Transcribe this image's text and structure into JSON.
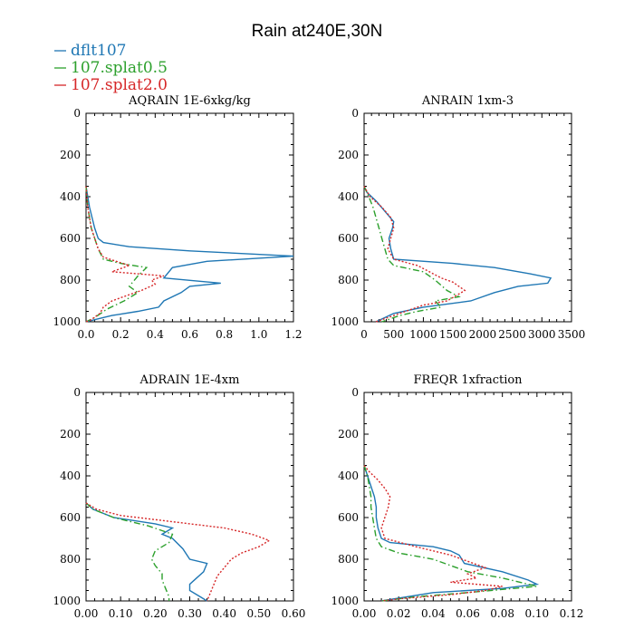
{
  "title": "Rain at240E,30N",
  "legend": [
    {
      "name": "dflt107",
      "color": "#1f77b4",
      "dash": "solid"
    },
    {
      "name": "107.splat0.5",
      "color": "#2ca02c",
      "dash": "dashdot"
    },
    {
      "name": "107.splat2.0",
      "color": "#d62728",
      "dash": "dotted"
    }
  ],
  "chart_data": [
    {
      "type": "line",
      "title": "AQRAIN  1E-6xkg/kg",
      "xlim": [
        0,
        1.2
      ],
      "ylim": [
        0,
        1000
      ],
      "y_inverted": true,
      "xticks": [
        "0.0",
        "0.2",
        "0.4",
        "0.6",
        "0.8",
        "1.0",
        "1.2"
      ],
      "xtick_values": [
        0,
        0.2,
        0.4,
        0.6,
        0.8,
        1.0,
        1.2
      ],
      "yticks": [
        "0",
        "200",
        "400",
        "600",
        "800",
        "1000"
      ],
      "ytick_values": [
        0,
        200,
        400,
        600,
        800,
        1000
      ],
      "series": [
        {
          "name": "dflt107",
          "points": [
            [
              0,
              350
            ],
            [
              0.02,
              450
            ],
            [
              0.05,
              550
            ],
            [
              0.07,
              600
            ],
            [
              0.1,
              620
            ],
            [
              0.25,
              640
            ],
            [
              0.6,
              660
            ],
            [
              1.2,
              685
            ],
            [
              0.7,
              710
            ],
            [
              0.5,
              740
            ],
            [
              0.45,
              790
            ],
            [
              0.78,
              815
            ],
            [
              0.6,
              830
            ],
            [
              0.55,
              860
            ],
            [
              0.45,
              900
            ],
            [
              0.42,
              930
            ],
            [
              0.3,
              950
            ],
            [
              0.15,
              970
            ],
            [
              0.05,
              990
            ],
            [
              0,
              1000
            ]
          ]
        },
        {
          "name": "107.splat0.5",
          "points": [
            [
              0,
              350
            ],
            [
              0.01,
              450
            ],
            [
              0.03,
              550
            ],
            [
              0.07,
              650
            ],
            [
              0.1,
              700
            ],
            [
              0.2,
              720
            ],
            [
              0.35,
              740
            ],
            [
              0.3,
              780
            ],
            [
              0.25,
              830
            ],
            [
              0.3,
              860
            ],
            [
              0.22,
              900
            ],
            [
              0.12,
              940
            ],
            [
              0.05,
              980
            ],
            [
              0,
              1000
            ]
          ]
        },
        {
          "name": "107.splat2.0",
          "points": [
            [
              0,
              350
            ],
            [
              0.01,
              450
            ],
            [
              0.03,
              550
            ],
            [
              0.07,
              650
            ],
            [
              0.1,
              690
            ],
            [
              0.25,
              730
            ],
            [
              0.15,
              760
            ],
            [
              0.45,
              780
            ],
            [
              0.38,
              800
            ],
            [
              0.4,
              820
            ],
            [
              0.32,
              850
            ],
            [
              0.25,
              870
            ],
            [
              0.15,
              900
            ],
            [
              0.1,
              930
            ],
            [
              0.08,
              960
            ],
            [
              0.03,
              990
            ],
            [
              0,
              1000
            ]
          ]
        }
      ]
    },
    {
      "type": "line",
      "title": "ANRAIN  1xm-3",
      "xlim": [
        0,
        3500
      ],
      "ylim": [
        0,
        1000
      ],
      "y_inverted": true,
      "xticks": [
        "0",
        "500",
        "1000",
        "1500",
        "2000",
        "2500",
        "3000",
        "3500"
      ],
      "xtick_values": [
        0,
        500,
        1000,
        1500,
        2000,
        2500,
        3000,
        3500
      ],
      "yticks": [
        "0",
        "200",
        "400",
        "600",
        "800",
        "1000"
      ],
      "ytick_values": [
        0,
        200,
        400,
        600,
        800,
        1000
      ],
      "series": [
        {
          "name": "dflt107",
          "points": [
            [
              0,
              350
            ],
            [
              50,
              380
            ],
            [
              200,
              420
            ],
            [
              350,
              470
            ],
            [
              500,
              520
            ],
            [
              480,
              550
            ],
            [
              420,
              600
            ],
            [
              450,
              650
            ],
            [
              500,
              700
            ],
            [
              1500,
              720
            ],
            [
              2200,
              740
            ],
            [
              2800,
              770
            ],
            [
              3150,
              790
            ],
            [
              3100,
              815
            ],
            [
              2600,
              830
            ],
            [
              2200,
              860
            ],
            [
              1800,
              900
            ],
            [
              1000,
              930
            ],
            [
              500,
              960
            ],
            [
              200,
              1000
            ]
          ]
        },
        {
          "name": "107.splat0.5",
          "points": [
            [
              0,
              350
            ],
            [
              80,
              400
            ],
            [
              150,
              450
            ],
            [
              200,
              500
            ],
            [
              250,
              550
            ],
            [
              300,
              600
            ],
            [
              350,
              650
            ],
            [
              400,
              700
            ],
            [
              500,
              730
            ],
            [
              1000,
              760
            ],
            [
              1200,
              800
            ],
            [
              1400,
              850
            ],
            [
              1600,
              880
            ],
            [
              1200,
              900
            ],
            [
              1300,
              930
            ],
            [
              900,
              950
            ],
            [
              600,
              970
            ],
            [
              300,
              1000
            ]
          ]
        },
        {
          "name": "107.splat2.0",
          "points": [
            [
              0,
              350
            ],
            [
              100,
              400
            ],
            [
              300,
              450
            ],
            [
              450,
              500
            ],
            [
              500,
              550
            ],
            [
              450,
              600
            ],
            [
              400,
              650
            ],
            [
              500,
              700
            ],
            [
              900,
              730
            ],
            [
              1100,
              760
            ],
            [
              1300,
              790
            ],
            [
              1500,
              810
            ],
            [
              1700,
              850
            ],
            [
              1400,
              900
            ],
            [
              1000,
              920
            ],
            [
              700,
              950
            ],
            [
              400,
              980
            ],
            [
              200,
              1000
            ]
          ]
        }
      ]
    },
    {
      "type": "line",
      "title": "ADRAIN  1E-4xm",
      "xlim": [
        0,
        0.6
      ],
      "ylim": [
        0,
        1000
      ],
      "y_inverted": true,
      "xticks": [
        "0.00",
        "0.10",
        "0.20",
        "0.30",
        "0.40",
        "0.50",
        "0.60"
      ],
      "xtick_values": [
        0,
        0.1,
        0.2,
        0.3,
        0.4,
        0.5,
        0.6
      ],
      "yticks": [
        "0",
        "200",
        "400",
        "600",
        "800",
        "1000"
      ],
      "ytick_values": [
        0,
        200,
        400,
        600,
        800,
        1000
      ],
      "series": [
        {
          "name": "dflt107",
          "points": [
            [
              0,
              530
            ],
            [
              0.02,
              560
            ],
            [
              0.08,
              600
            ],
            [
              0.2,
              630
            ],
            [
              0.25,
              650
            ],
            [
              0.22,
              680
            ],
            [
              0.25,
              700
            ],
            [
              0.28,
              750
            ],
            [
              0.3,
              800
            ],
            [
              0.35,
              820
            ],
            [
              0.34,
              860
            ],
            [
              0.32,
              890
            ],
            [
              0.3,
              920
            ],
            [
              0.3,
              950
            ],
            [
              0.33,
              980
            ],
            [
              0.35,
              1000
            ]
          ]
        },
        {
          "name": "107.splat0.5",
          "points": [
            [
              0,
              530
            ],
            [
              0.02,
              560
            ],
            [
              0.08,
              600
            ],
            [
              0.18,
              640
            ],
            [
              0.25,
              680
            ],
            [
              0.24,
              720
            ],
            [
              0.2,
              760
            ],
            [
              0.19,
              800
            ],
            [
              0.2,
              830
            ],
            [
              0.22,
              870
            ],
            [
              0.22,
              900
            ],
            [
              0.23,
              940
            ],
            [
              0.24,
              980
            ],
            [
              0.24,
              1000
            ]
          ]
        },
        {
          "name": "107.splat2.0",
          "points": [
            [
              0,
              530
            ],
            [
              0.03,
              560
            ],
            [
              0.1,
              590
            ],
            [
              0.25,
              620
            ],
            [
              0.4,
              650
            ],
            [
              0.48,
              680
            ],
            [
              0.53,
              710
            ],
            [
              0.5,
              740
            ],
            [
              0.45,
              770
            ],
            [
              0.42,
              800
            ],
            [
              0.4,
              840
            ],
            [
              0.38,
              880
            ],
            [
              0.37,
              920
            ],
            [
              0.36,
              960
            ],
            [
              0.35,
              1000
            ]
          ]
        }
      ]
    },
    {
      "type": "line",
      "title": "FREQR  1xfraction",
      "xlim": [
        0,
        0.12
      ],
      "ylim": [
        0,
        1000
      ],
      "y_inverted": true,
      "xticks": [
        "0.00",
        "0.02",
        "0.04",
        "0.06",
        "0.08",
        "0.10",
        "0.12"
      ],
      "xtick_values": [
        0,
        0.02,
        0.04,
        0.06,
        0.08,
        0.1,
        0.12
      ],
      "yticks": [
        "0",
        "200",
        "400",
        "600",
        "800",
        "1000"
      ],
      "ytick_values": [
        0,
        200,
        400,
        600,
        800,
        1000
      ],
      "series": [
        {
          "name": "dflt107",
          "points": [
            [
              0,
              350
            ],
            [
              0.002,
              400
            ],
            [
              0.004,
              450
            ],
            [
              0.006,
              500
            ],
            [
              0.007,
              550
            ],
            [
              0.007,
              600
            ],
            [
              0.008,
              650
            ],
            [
              0.01,
              700
            ],
            [
              0.015,
              720
            ],
            [
              0.04,
              740
            ],
            [
              0.05,
              760
            ],
            [
              0.055,
              780
            ],
            [
              0.058,
              820
            ],
            [
              0.08,
              860
            ],
            [
              0.095,
              900
            ],
            [
              0.1,
              920
            ],
            [
              0.08,
              940
            ],
            [
              0.04,
              960
            ],
            [
              0.01,
              1000
            ]
          ]
        },
        {
          "name": "107.splat0.5",
          "points": [
            [
              0,
              350
            ],
            [
              0.002,
              400
            ],
            [
              0.003,
              450
            ],
            [
              0.004,
              500
            ],
            [
              0.004,
              550
            ],
            [
              0.005,
              600
            ],
            [
              0.006,
              650
            ],
            [
              0.007,
              700
            ],
            [
              0.01,
              740
            ],
            [
              0.02,
              770
            ],
            [
              0.04,
              800
            ],
            [
              0.05,
              830
            ],
            [
              0.06,
              860
            ],
            [
              0.08,
              890
            ],
            [
              0.09,
              910
            ],
            [
              0.1,
              930
            ],
            [
              0.06,
              960
            ],
            [
              0.03,
              980
            ],
            [
              0.01,
              1000
            ]
          ]
        },
        {
          "name": "107.splat2.0",
          "points": [
            [
              0,
              350
            ],
            [
              0.003,
              380
            ],
            [
              0.008,
              420
            ],
            [
              0.012,
              460
            ],
            [
              0.015,
              500
            ],
            [
              0.014,
              550
            ],
            [
              0.012,
              600
            ],
            [
              0.01,
              650
            ],
            [
              0.012,
              700
            ],
            [
              0.03,
              740
            ],
            [
              0.05,
              780
            ],
            [
              0.06,
              810
            ],
            [
              0.07,
              840
            ],
            [
              0.06,
              870
            ],
            [
              0.065,
              890
            ],
            [
              0.05,
              910
            ],
            [
              0.08,
              930
            ],
            [
              0.07,
              950
            ],
            [
              0.05,
              970
            ],
            [
              0.02,
              990
            ],
            [
              0.01,
              1000
            ]
          ]
        }
      ]
    }
  ]
}
